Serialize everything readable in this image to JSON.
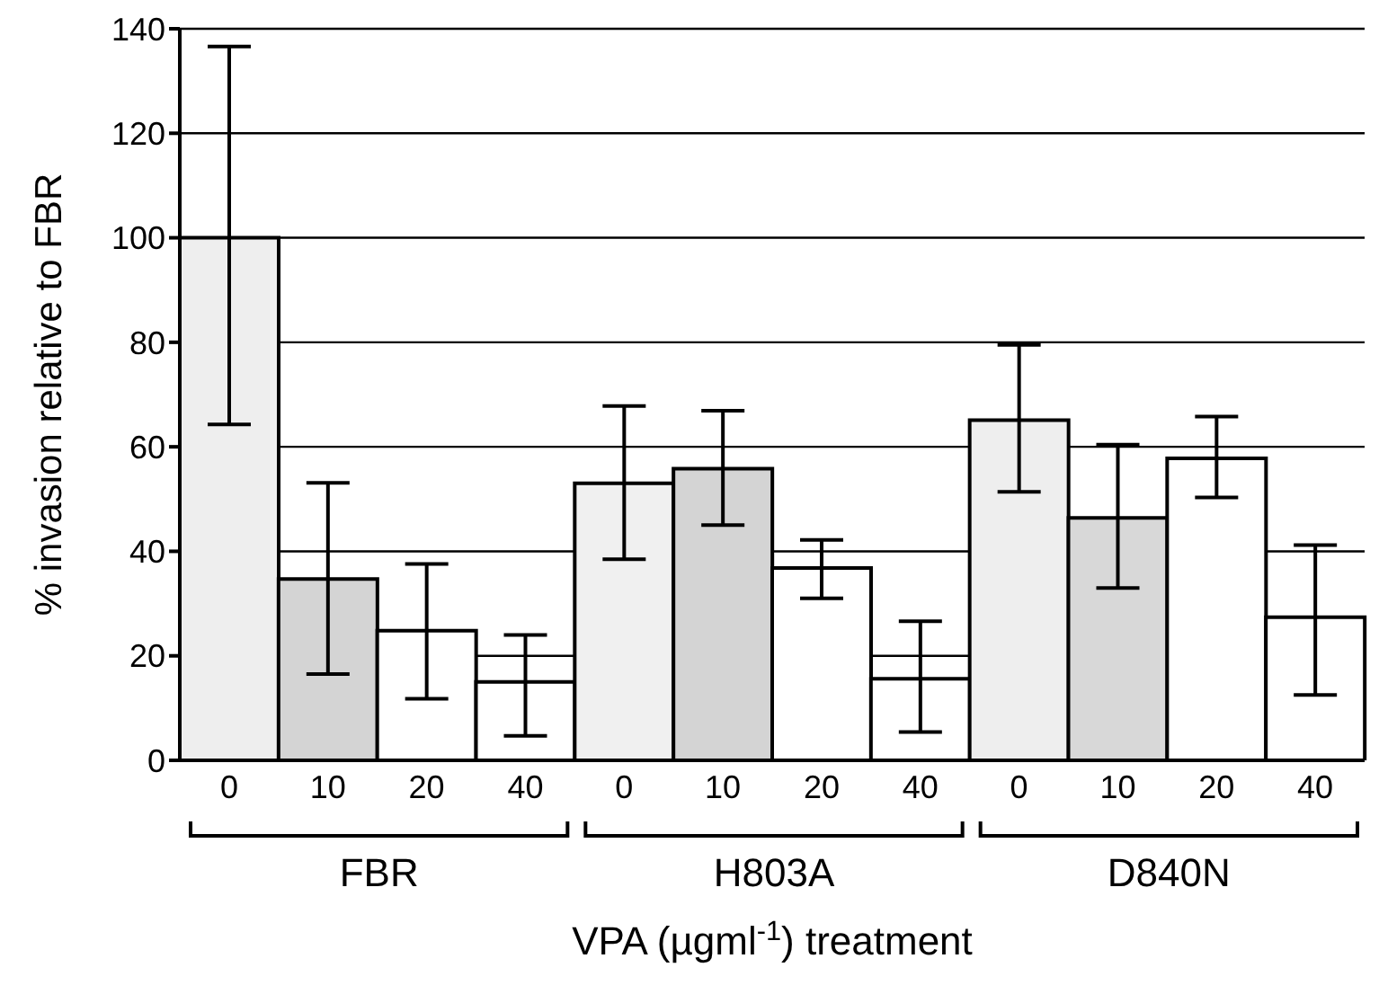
{
  "chart_data": {
    "type": "bar",
    "categories": [
      "0",
      "10",
      "20",
      "40",
      "0",
      "10",
      "20",
      "40",
      "0",
      "10",
      "20",
      "40"
    ],
    "values": [
      100,
      34.7,
      24.8,
      15,
      53,
      55.8,
      36.8,
      15.6,
      65.1,
      46.4,
      57.8,
      27.4
    ],
    "errors": [
      [
        64.3,
        136.6
      ],
      [
        16.5,
        53.1
      ],
      [
        11.8,
        37.6
      ],
      [
        4.7,
        24
      ],
      [
        38.5,
        67.8
      ],
      [
        45,
        66.9
      ],
      [
        31,
        42.2
      ],
      [
        5.4,
        26.6
      ],
      [
        51.4,
        79.5
      ],
      [
        33,
        60.4
      ],
      [
        50.3,
        65.8
      ],
      [
        12.5,
        41.2
      ]
    ],
    "colors": [
      "#eeeeee",
      "#d4d4d4",
      "#ffffff",
      "#ffffff",
      "#f0f0f0",
      "#d4d4d4",
      "#ffffff",
      "#ffffff",
      "#eeeeee",
      "#d8d8d8",
      "#ffffff",
      "#ffffff"
    ],
    "ylim": [
      0,
      140
    ],
    "yticks": [
      0,
      20,
      40,
      60,
      80,
      100,
      120,
      140
    ],
    "grid": "y",
    "ylabel": "% invasion relative to FBR",
    "xlabel": "VPA (µgml$^{-1}$) treatment",
    "annotations": [
      "FBR",
      "H803A",
      "D840N"
    ]
  }
}
